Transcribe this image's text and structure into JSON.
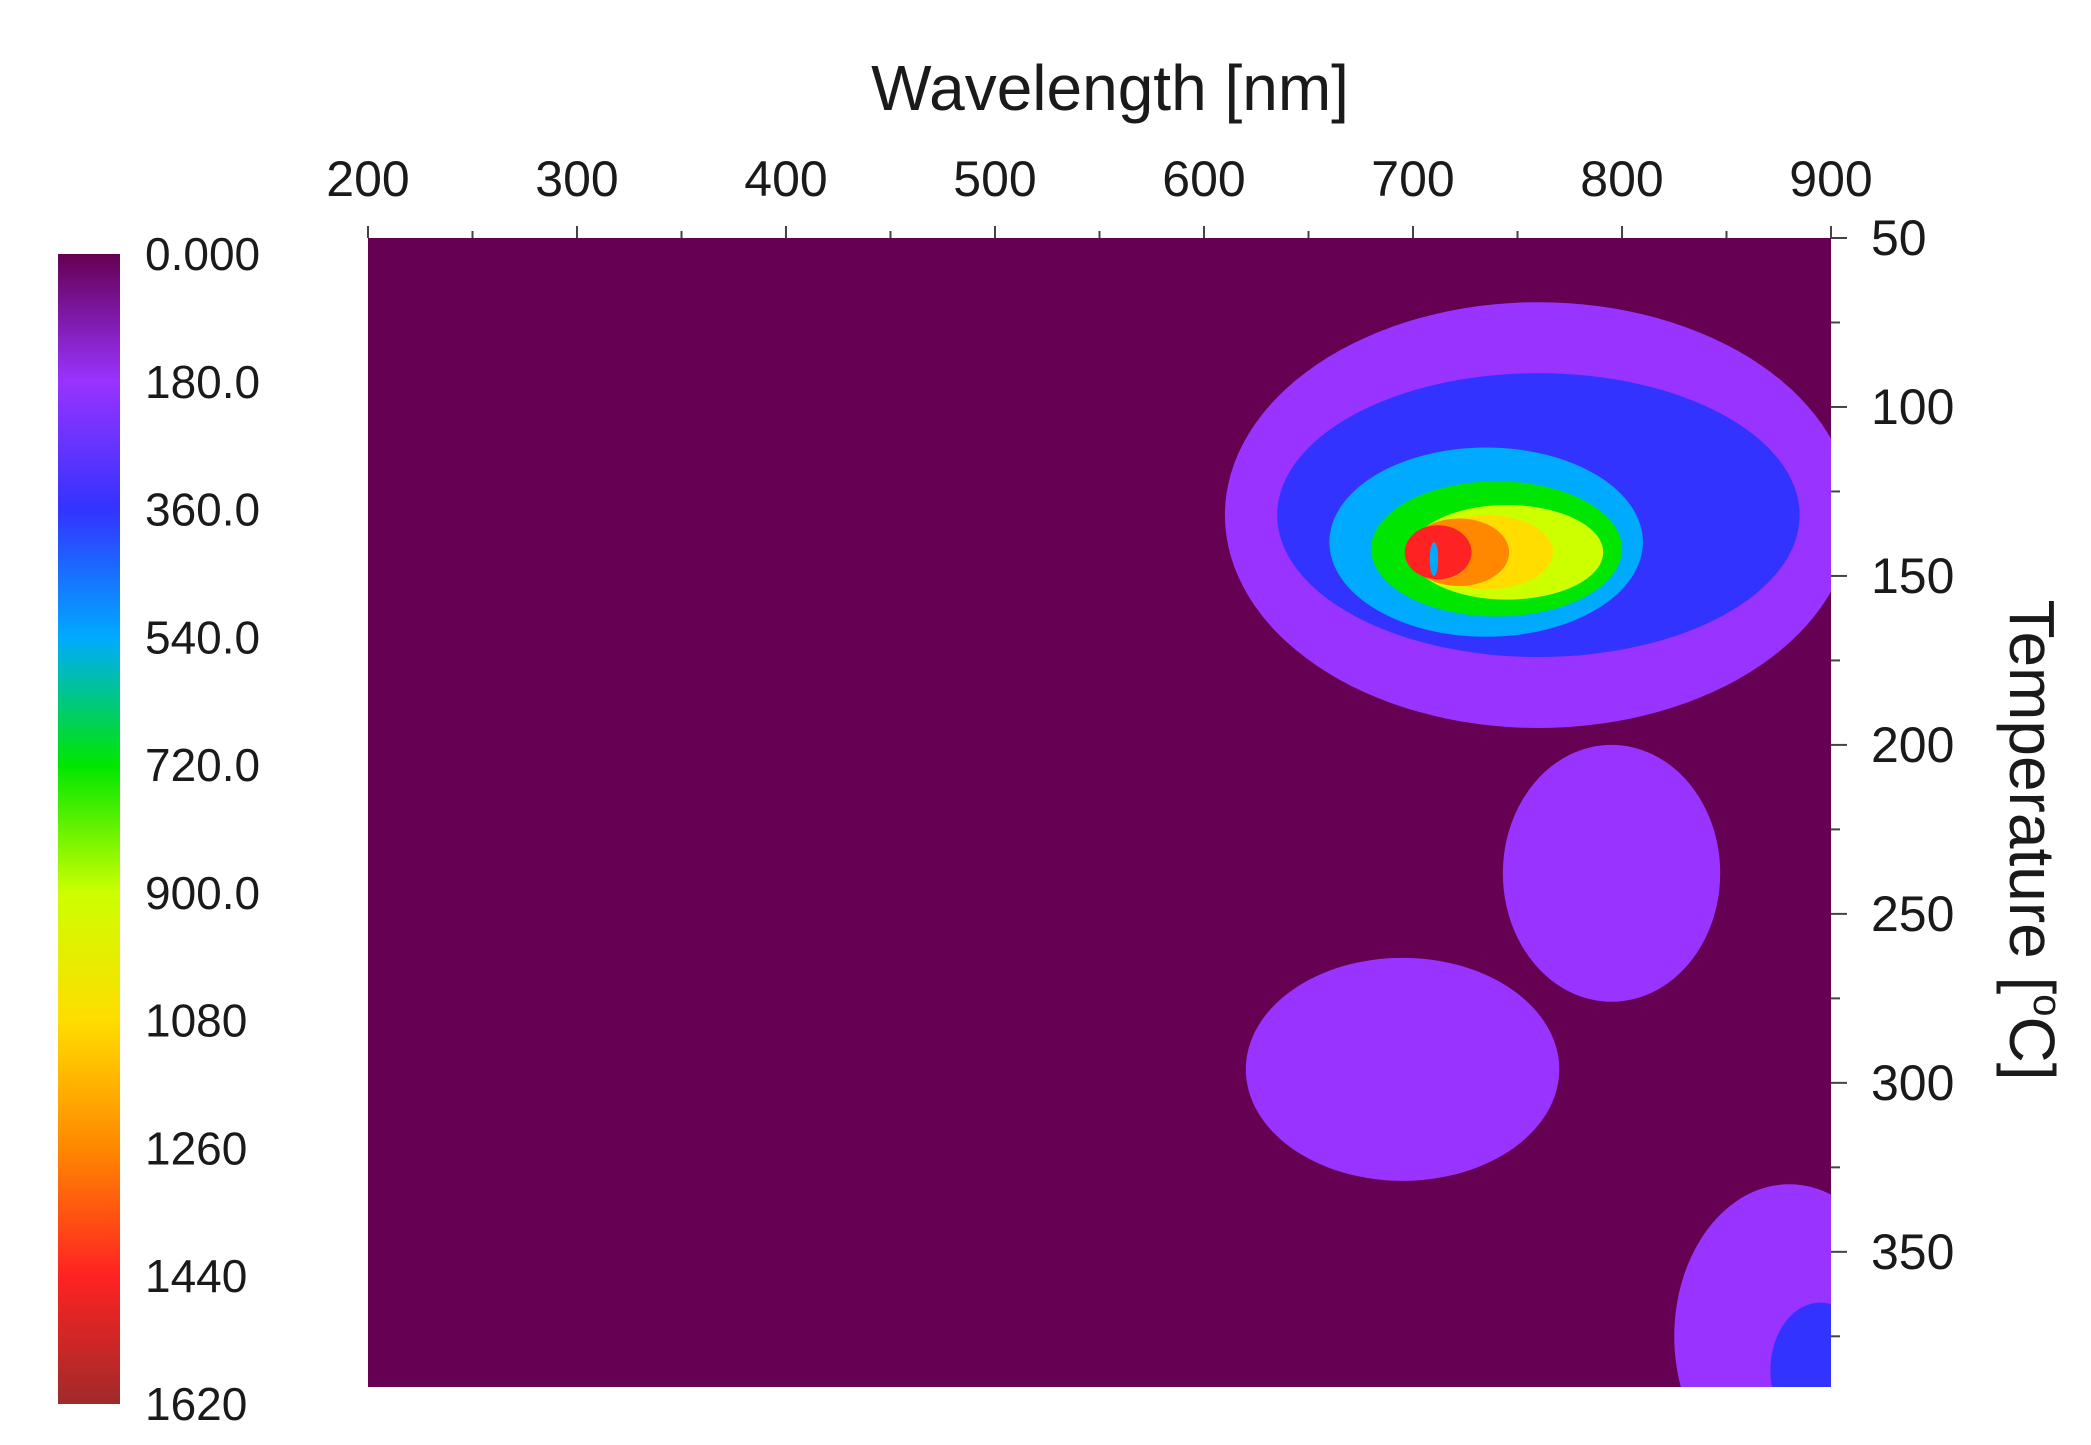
{
  "chart_data": {
    "type": "heatmap",
    "title": "",
    "xlabel": "Wavelength [nm]",
    "ylabel_prefix": "Temperature [",
    "ylabel_sup": "o",
    "ylabel_suffix": "C]",
    "x_axis_position": "top",
    "y_axis_position": "right",
    "xlim": [
      200,
      900
    ],
    "ylim": [
      50,
      390
    ],
    "y_inverted": true,
    "x_ticks": [
      "200",
      "300",
      "400",
      "500",
      "600",
      "700",
      "800",
      "900"
    ],
    "y_ticks": [
      "50",
      "100",
      "150",
      "200",
      "250",
      "300",
      "350"
    ],
    "colorbar": {
      "position": "left",
      "min": 0,
      "max": 1620,
      "labels": [
        "0.000",
        "180.0",
        "360.0",
        "540.0",
        "720.0",
        "900.0",
        "1080",
        "1260",
        "1440",
        "1620"
      ],
      "level_colors": [
        "#650052",
        "#9933ff",
        "#3333ff",
        "#00aaff",
        "#00e600",
        "#ccff00",
        "#ffdd00",
        "#ff8800",
        "#ff2222",
        "#a02a2a"
      ]
    },
    "background_color": "#650052",
    "regions": [
      {
        "level": 1,
        "center": [
          760,
          132
        ],
        "half_width": [
          150,
          63
        ]
      },
      {
        "level": 1,
        "center": [
          795,
          238
        ],
        "half_width": [
          52,
          38
        ]
      },
      {
        "level": 1,
        "center": [
          695,
          296
        ],
        "half_width": [
          75,
          33
        ]
      },
      {
        "level": 1,
        "center": [
          880,
          375
        ],
        "half_width": [
          55,
          45
        ]
      },
      {
        "level": 2,
        "center": [
          760,
          132
        ],
        "half_width": [
          125,
          42
        ]
      },
      {
        "level": 2,
        "center": [
          895,
          385
        ],
        "half_width": [
          24,
          20
        ]
      },
      {
        "level": 3,
        "center": [
          735,
          140
        ],
        "half_width": [
          75,
          28
        ]
      },
      {
        "level": 4,
        "center": [
          740,
          142
        ],
        "half_width": [
          60,
          20
        ]
      },
      {
        "level": 5,
        "center": [
          745,
          143
        ],
        "half_width": [
          46,
          14
        ]
      },
      {
        "level": 6,
        "center": [
          735,
          143
        ],
        "half_width": [
          32,
          11
        ]
      },
      {
        "level": 7,
        "center": [
          722,
          143
        ],
        "half_width": [
          24,
          10
        ]
      },
      {
        "level": 8,
        "center": [
          712,
          143
        ],
        "half_width": [
          16,
          8
        ]
      },
      {
        "level": 3,
        "center": [
          710,
          145
        ],
        "half_width": [
          2,
          5
        ]
      }
    ]
  }
}
